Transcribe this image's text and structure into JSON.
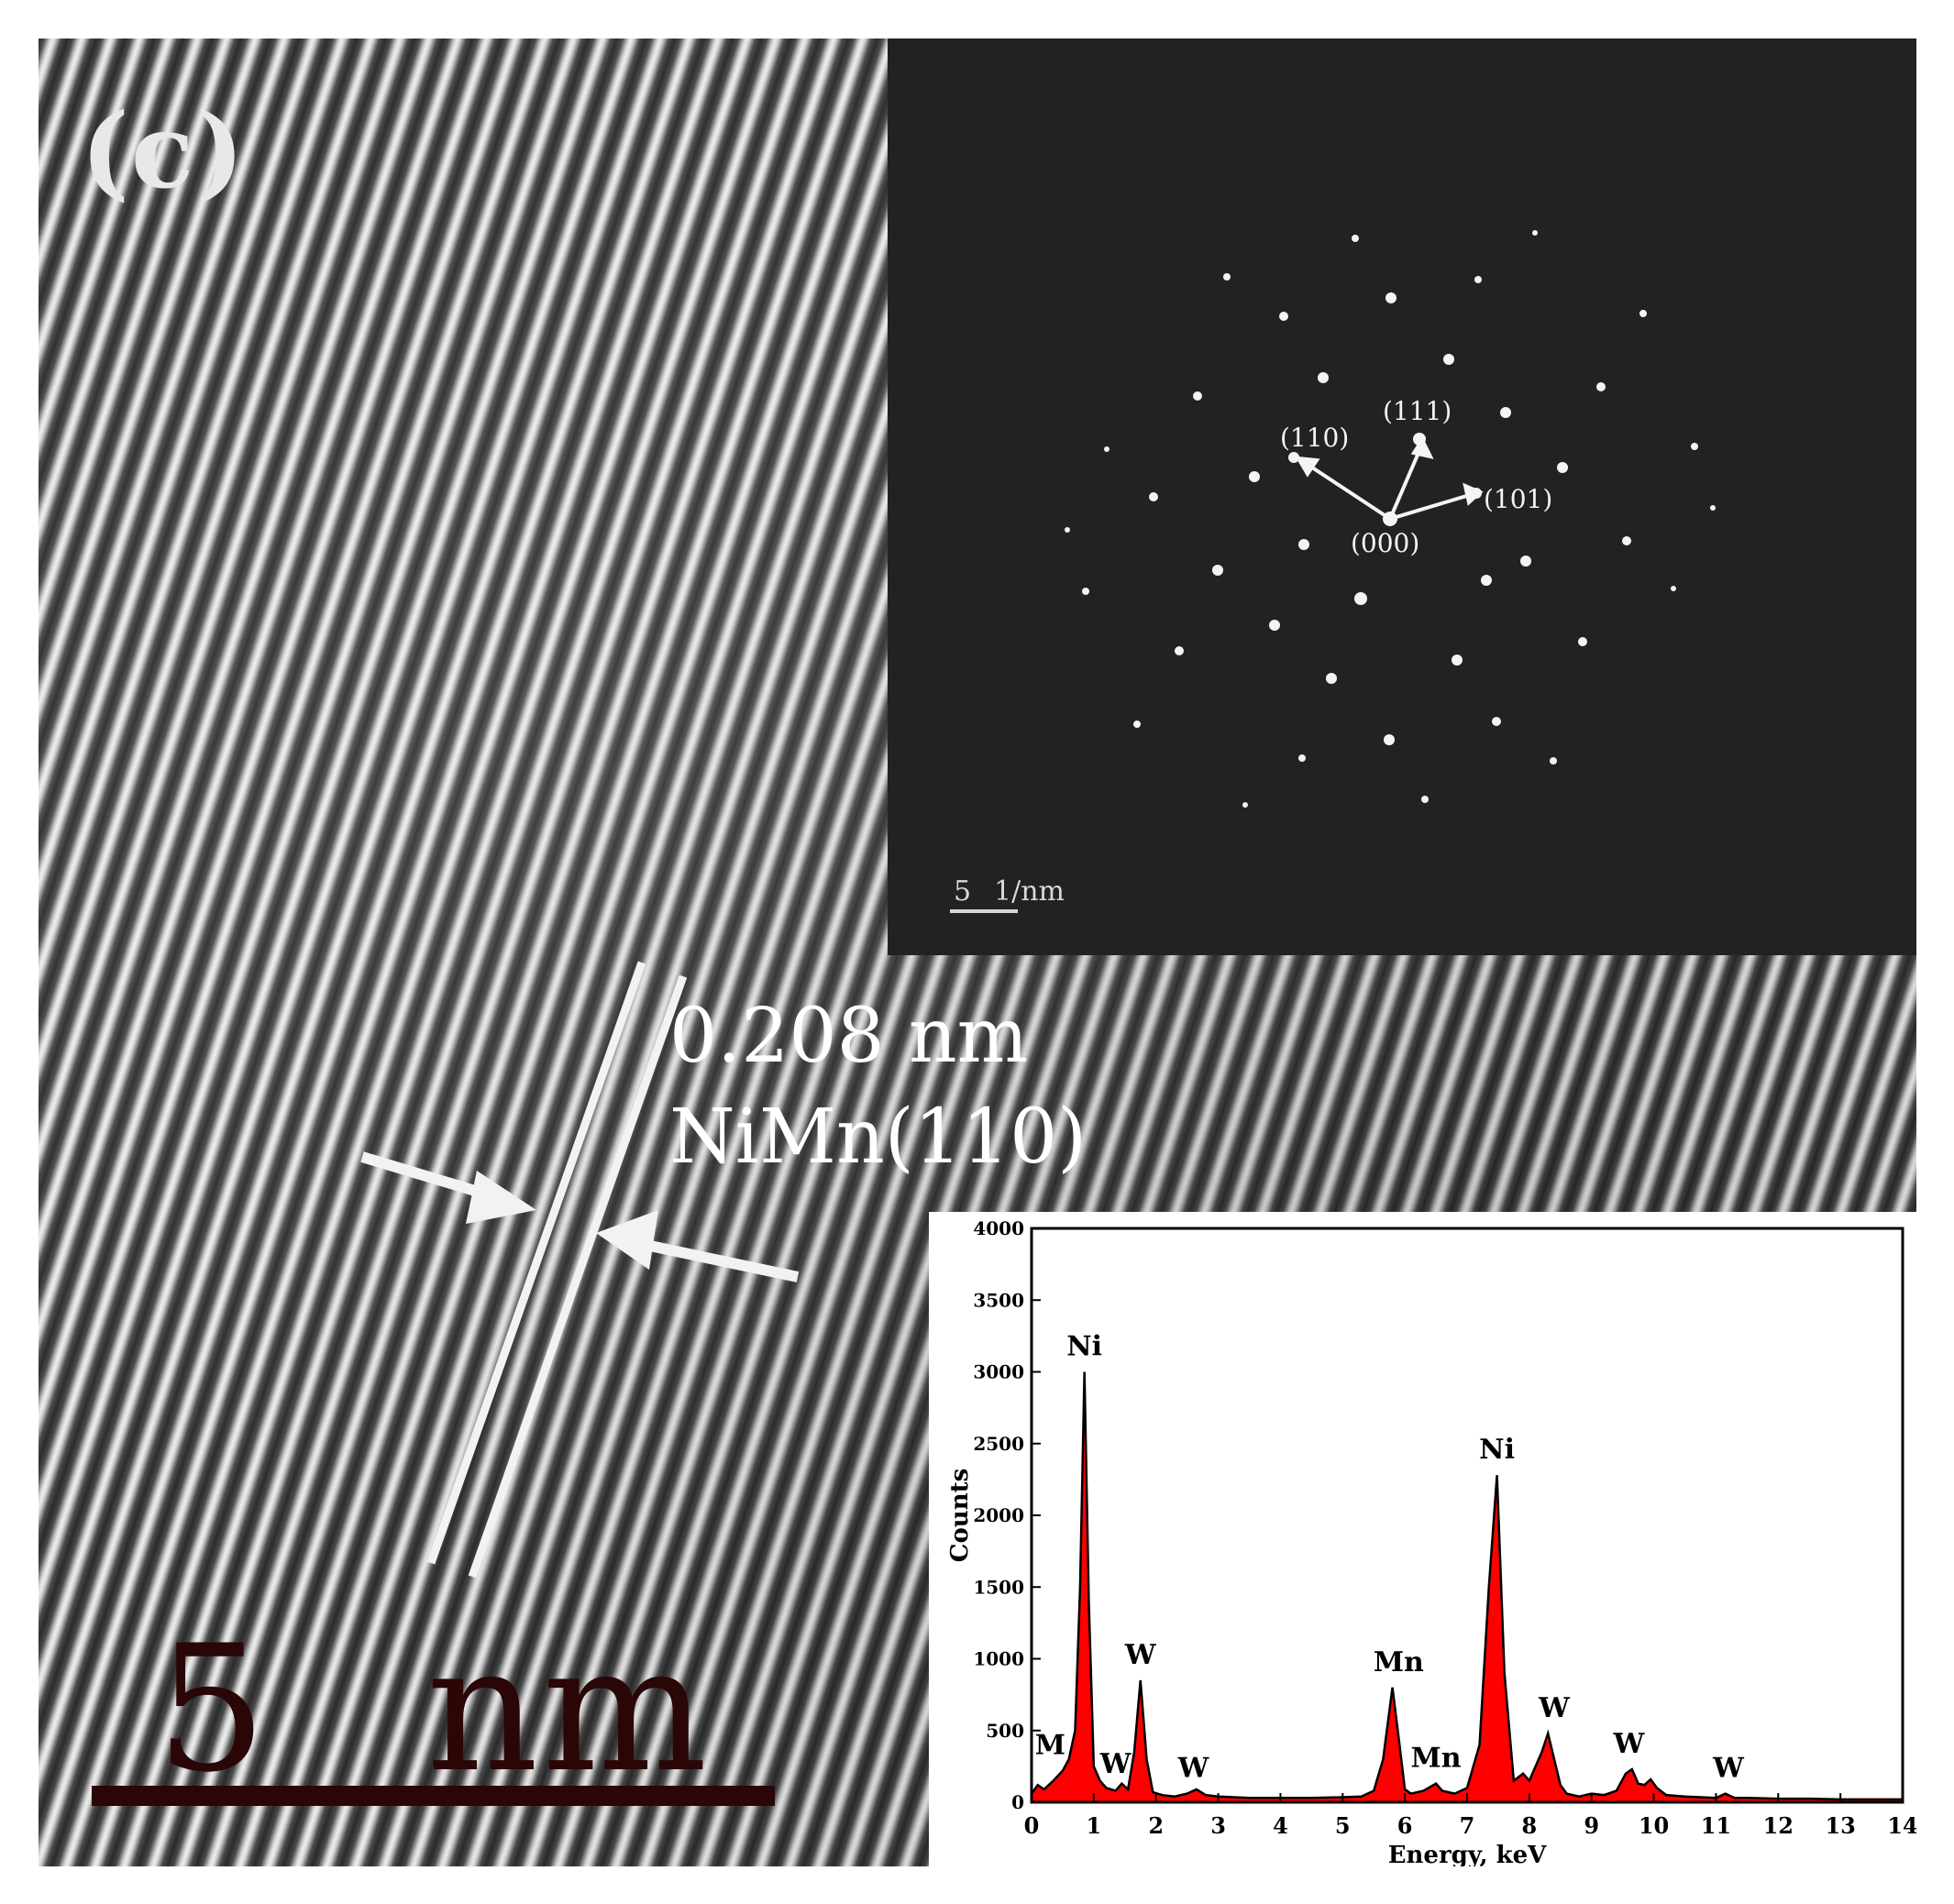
{
  "figure": {
    "panel_label": "(c)",
    "d_spacing": "0.208 nm",
    "plane": "NiMn(110)",
    "scale_bar": {
      "value": "5",
      "unit": "nm"
    }
  },
  "saed": {
    "labels": [
      "(110)",
      "(111)",
      "(101)",
      "(000)"
    ],
    "scale_bar": {
      "value": "5",
      "unit": "1/nm"
    }
  },
  "chart_data": {
    "type": "line",
    "xlabel": "Energy, keV",
    "ylabel": "Counts",
    "xlim": [
      0,
      14
    ],
    "ylim": [
      0,
      4000
    ],
    "x_ticks": [
      "0",
      "1",
      "2",
      "3",
      "4",
      "5",
      "6",
      "7",
      "8",
      "9",
      "10",
      "11",
      "12",
      "13",
      "14"
    ],
    "y_ticks": [
      "0",
      "500",
      "1000",
      "1500",
      "2000",
      "2500",
      "3000",
      "3500",
      "4000"
    ],
    "fill_color": "#ff0000",
    "series": [
      {
        "x": [
          0,
          0.1,
          0.2,
          0.35,
          0.5,
          0.6,
          0.7,
          0.78,
          0.85,
          0.92,
          1.0,
          1.1,
          1.2,
          1.35,
          1.45,
          1.55,
          1.65,
          1.75,
          1.85,
          1.95,
          2.1,
          2.3,
          2.5,
          2.65,
          2.8,
          3.0,
          3.5,
          4.0,
          4.5,
          5.0,
          5.3,
          5.5,
          5.65,
          5.8,
          5.9,
          6.0,
          6.1,
          6.3,
          6.5,
          6.6,
          6.8,
          7.0,
          7.2,
          7.35,
          7.48,
          7.6,
          7.75,
          7.9,
          8.0,
          8.1,
          8.2,
          8.3,
          8.4,
          8.5,
          8.6,
          8.8,
          9.0,
          9.2,
          9.4,
          9.55,
          9.65,
          9.75,
          9.85,
          9.95,
          10.05,
          10.2,
          10.5,
          11.0,
          11.15,
          11.3,
          11.5,
          12.0,
          12.5,
          13.0,
          13.5,
          14.0
        ],
        "y": [
          60,
          120,
          90,
          150,
          220,
          300,
          500,
          1500,
          3000,
          1400,
          250,
          150,
          100,
          80,
          130,
          90,
          350,
          850,
          300,
          70,
          50,
          40,
          60,
          90,
          50,
          40,
          30,
          30,
          30,
          35,
          40,
          80,
          300,
          800,
          450,
          90,
          60,
          80,
          130,
          80,
          60,
          100,
          400,
          1500,
          2280,
          900,
          150,
          200,
          150,
          250,
          350,
          480,
          300,
          120,
          60,
          40,
          60,
          50,
          80,
          200,
          230,
          130,
          120,
          160,
          100,
          50,
          40,
          30,
          60,
          30,
          30,
          25,
          25,
          20,
          20,
          20
        ]
      }
    ],
    "annotations": [
      {
        "text": "Ni",
        "x": 0.85,
        "y": 3000
      },
      {
        "text": "M",
        "x": 0.3,
        "y": 220
      },
      {
        "text": "W",
        "x": 1.35,
        "y": 90
      },
      {
        "text": "W",
        "x": 1.75,
        "y": 850
      },
      {
        "text": "W",
        "x": 2.6,
        "y": 60
      },
      {
        "text": "Mn",
        "x": 5.9,
        "y": 800
      },
      {
        "text": "Mn",
        "x": 6.5,
        "y": 130
      },
      {
        "text": "Ni",
        "x": 7.48,
        "y": 2280
      },
      {
        "text": "W",
        "x": 8.4,
        "y": 480
      },
      {
        "text": "W",
        "x": 9.6,
        "y": 230
      },
      {
        "text": "W",
        "x": 11.2,
        "y": 60
      }
    ]
  }
}
